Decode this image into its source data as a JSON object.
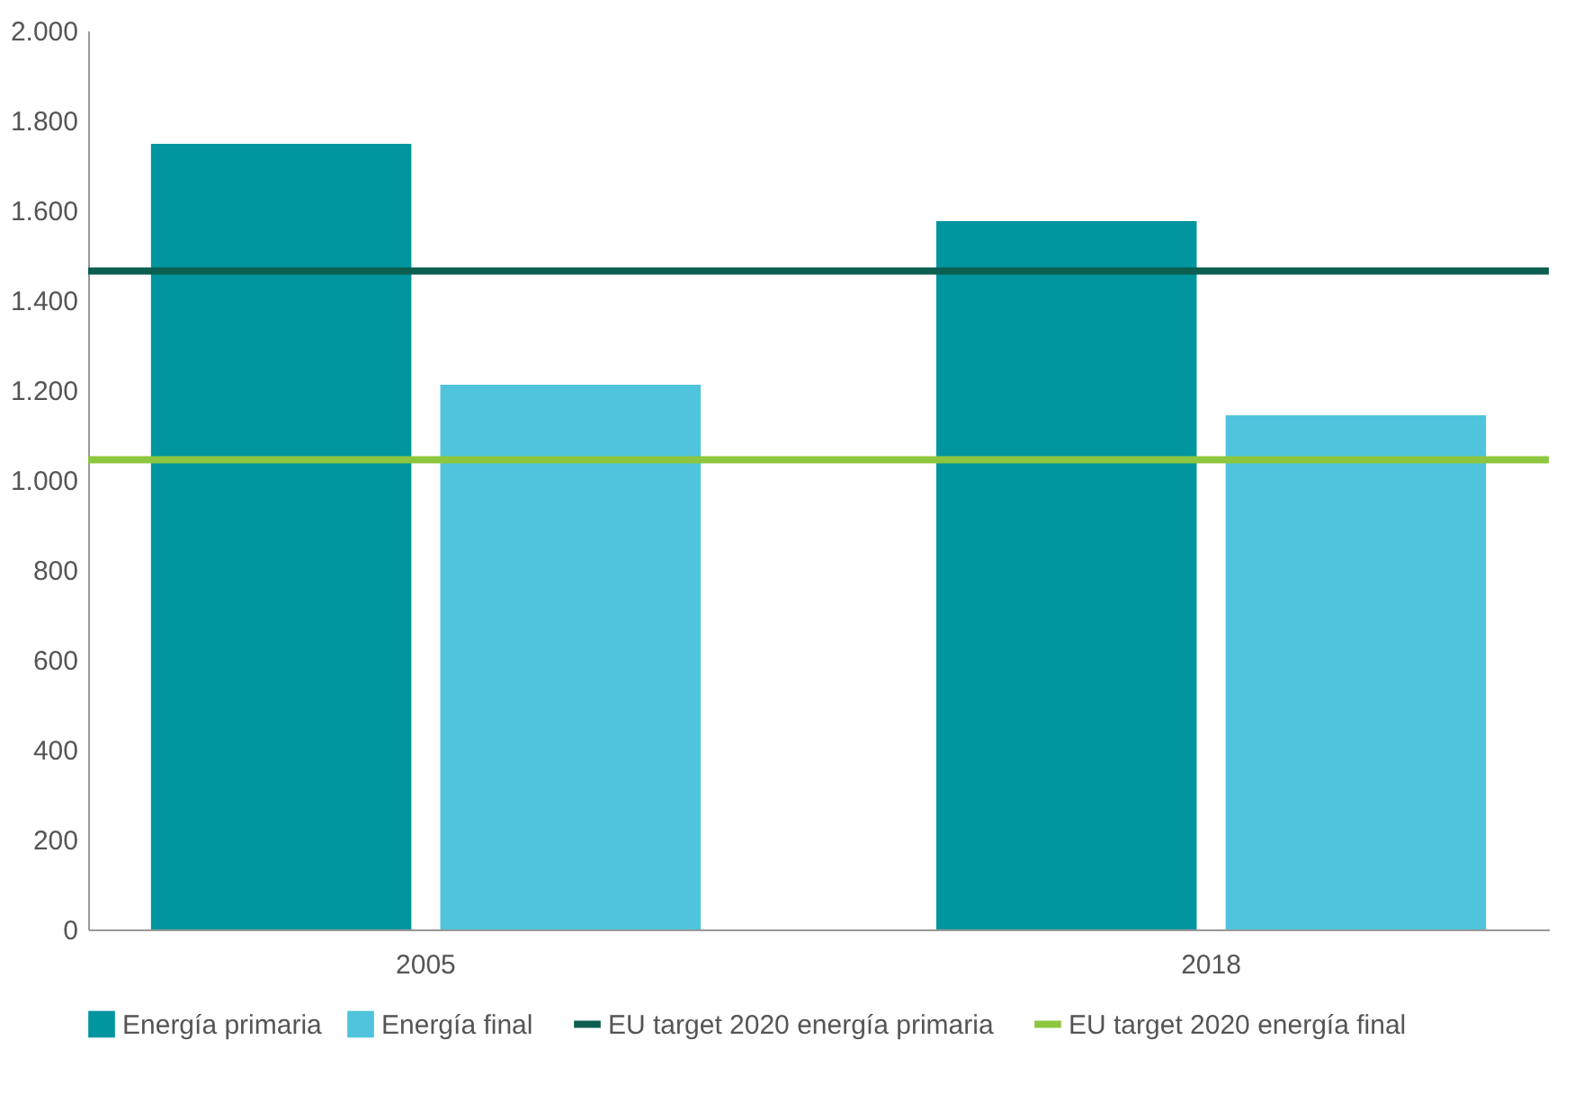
{
  "chart_data": {
    "type": "bar",
    "categories": [
      "2005",
      "2018"
    ],
    "series": [
      {
        "name": "Energía primaria",
        "color": "#00959f",
        "values": [
          1748,
          1576
        ]
      },
      {
        "name": "Energía final",
        "color": "#4fc4dc",
        "values": [
          1212,
          1144
        ]
      }
    ],
    "ylim": [
      0,
      2000
    ],
    "yticks": [
      {
        "value": 0,
        "label": "0"
      },
      {
        "value": 200,
        "label": "200"
      },
      {
        "value": 400,
        "label": "400"
      },
      {
        "value": 600,
        "label": "600"
      },
      {
        "value": 800,
        "label": "800"
      },
      {
        "value": 1000,
        "label": "1.000"
      },
      {
        "value": 1200,
        "label": "1.200"
      },
      {
        "value": 1400,
        "label": "1.400"
      },
      {
        "value": 1600,
        "label": "1.600"
      },
      {
        "value": 1800,
        "label": "1.800"
      },
      {
        "value": 2000,
        "label": "2.000"
      }
    ],
    "ref_lines": [
      {
        "axis": "y",
        "value": 1465,
        "label": "EU target 2020 energía primaria",
        "color": "#0b5e50"
      },
      {
        "axis": "y",
        "value": 1045,
        "label": "EU target 2020 energía final",
        "color": "#8dc63f"
      }
    ],
    "grid": false,
    "legend": "bottom"
  }
}
